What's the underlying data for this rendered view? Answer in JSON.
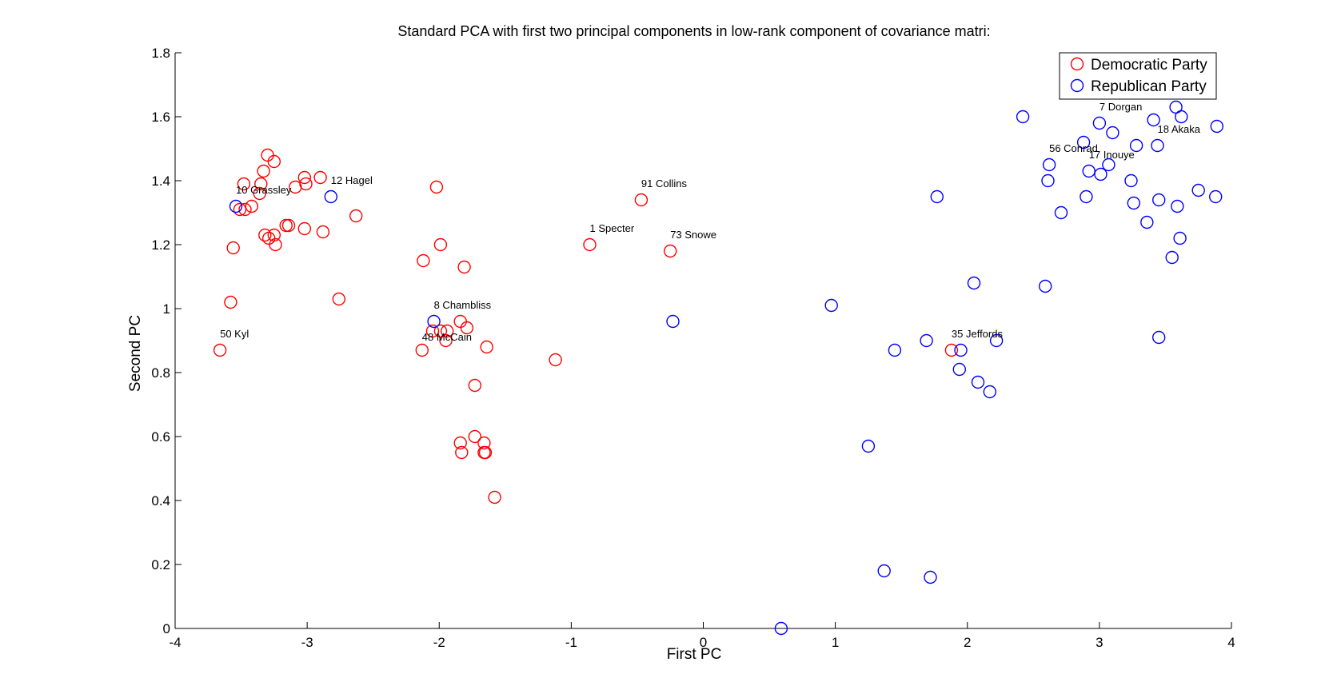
{
  "chart_data": {
    "type": "scatter",
    "title": "Standard PCA with first two principal components in low-rank component of covariance matri:",
    "xlabel": "First PC",
    "ylabel": "Second PC",
    "xlim": [
      -4,
      4
    ],
    "ylim": [
      0,
      1.8
    ],
    "x_ticks": [
      "-4",
      "-3",
      "-2",
      "-1",
      "0",
      "1",
      "2",
      "3",
      "4"
    ],
    "y_ticks": [
      "0",
      "0.2",
      "0.4",
      "0.6",
      "0.8",
      "1",
      "1.2",
      "1.4",
      "1.6",
      "1.8"
    ],
    "grid": false,
    "legend_position": "top-right",
    "series": [
      {
        "name": "Democratic Party",
        "color": "#ff0000",
        "marker": "open-circle",
        "points": [
          [
            -3.3,
            1.48
          ],
          [
            -3.25,
            1.46
          ],
          [
            -3.33,
            1.43
          ],
          [
            -3.48,
            1.39
          ],
          [
            -3.35,
            1.39
          ],
          [
            -3.36,
            1.36
          ],
          [
            -3.02,
            1.41
          ],
          [
            -3.01,
            1.39
          ],
          [
            -2.9,
            1.41
          ],
          [
            -3.09,
            1.38
          ],
          [
            -3.42,
            1.32
          ],
          [
            -3.47,
            1.31
          ],
          [
            -3.51,
            1.31
          ],
          [
            -3.16,
            1.26
          ],
          [
            -3.14,
            1.26
          ],
          [
            -3.02,
            1.25
          ],
          [
            -2.88,
            1.24
          ],
          [
            -3.32,
            1.23
          ],
          [
            -3.25,
            1.23
          ],
          [
            -3.29,
            1.22
          ],
          [
            -3.24,
            1.2
          ],
          [
            -3.56,
            1.19
          ],
          [
            -2.63,
            1.29
          ],
          [
            -2.76,
            1.03
          ],
          [
            -3.58,
            1.02
          ],
          [
            -3.66,
            0.87
          ],
          [
            -2.02,
            1.38
          ],
          [
            -1.99,
            1.2
          ],
          [
            -2.12,
            1.15
          ],
          [
            -1.81,
            1.13
          ],
          [
            -1.84,
            0.96
          ],
          [
            -1.79,
            0.94
          ],
          [
            -1.94,
            0.93
          ],
          [
            -1.99,
            0.93
          ],
          [
            -2.05,
            0.93
          ],
          [
            -1.95,
            0.9
          ],
          [
            -1.64,
            0.88
          ],
          [
            -2.13,
            0.87
          ],
          [
            -1.73,
            0.76
          ],
          [
            -1.73,
            0.6
          ],
          [
            -1.66,
            0.58
          ],
          [
            -1.84,
            0.58
          ],
          [
            -1.83,
            0.55
          ],
          [
            -1.66,
            0.55
          ],
          [
            -1.65,
            0.55
          ],
          [
            -1.58,
            0.41
          ],
          [
            -1.12,
            0.84
          ],
          [
            -0.86,
            1.2
          ],
          [
            -0.47,
            1.34
          ],
          [
            -0.25,
            1.18
          ],
          [
            1.88,
            0.87
          ]
        ]
      },
      {
        "name": "Republican Party",
        "color": "#0000ff",
        "marker": "open-circle",
        "points": [
          [
            -3.54,
            1.32
          ],
          [
            -2.82,
            1.35
          ],
          [
            -2.04,
            0.96
          ],
          [
            -0.23,
            0.96
          ],
          [
            0.97,
            1.01
          ],
          [
            0.59,
            0.0
          ],
          [
            1.25,
            0.57
          ],
          [
            1.37,
            0.18
          ],
          [
            1.45,
            0.87
          ],
          [
            1.69,
            0.9
          ],
          [
            1.72,
            0.16
          ],
          [
            1.77,
            1.35
          ],
          [
            1.94,
            0.81
          ],
          [
            1.95,
            0.87
          ],
          [
            2.05,
            1.08
          ],
          [
            2.08,
            0.77
          ],
          [
            2.17,
            0.74
          ],
          [
            2.22,
            0.9
          ],
          [
            2.42,
            1.6
          ],
          [
            2.59,
            1.07
          ],
          [
            2.61,
            1.4
          ],
          [
            2.62,
            1.45
          ],
          [
            2.71,
            1.3
          ],
          [
            2.88,
            1.52
          ],
          [
            2.9,
            1.35
          ],
          [
            2.92,
            1.43
          ],
          [
            3.0,
            1.58
          ],
          [
            3.01,
            1.42
          ],
          [
            3.07,
            1.45
          ],
          [
            3.1,
            1.55
          ],
          [
            3.24,
            1.4
          ],
          [
            3.26,
            1.33
          ],
          [
            3.28,
            1.51
          ],
          [
            3.36,
            1.27
          ],
          [
            3.41,
            1.59
          ],
          [
            3.44,
            1.51
          ],
          [
            3.45,
            1.34
          ],
          [
            3.45,
            0.91
          ],
          [
            3.55,
            1.16
          ],
          [
            3.58,
            1.63
          ],
          [
            3.59,
            1.32
          ],
          [
            3.61,
            1.22
          ],
          [
            3.62,
            1.6
          ],
          [
            3.75,
            1.37
          ],
          [
            3.88,
            1.35
          ],
          [
            3.89,
            1.57
          ]
        ]
      }
    ],
    "annotations": [
      {
        "text": "10 Grassley",
        "x": -3.54,
        "y": 1.36
      },
      {
        "text": "12 Hagel",
        "x": -2.82,
        "y": 1.39
      },
      {
        "text": "50 Kyl",
        "x": -3.66,
        "y": 0.91
      },
      {
        "text": "8 Chambliss",
        "x": -2.04,
        "y": 1.0
      },
      {
        "text": "48 McCain",
        "x": -2.13,
        "y": 0.9
      },
      {
        "text": "1 Specter",
        "x": -0.86,
        "y": 1.24
      },
      {
        "text": "91 Collins",
        "x": -0.47,
        "y": 1.38
      },
      {
        "text": "73 Snowe",
        "x": -0.25,
        "y": 1.22
      },
      {
        "text": "35 Jeffords",
        "x": 1.88,
        "y": 0.91
      },
      {
        "text": "56 Conrad",
        "x": 2.62,
        "y": 1.49
      },
      {
        "text": "17 Inouye",
        "x": 2.92,
        "y": 1.47
      },
      {
        "text": "7 Dorgan",
        "x": 3.0,
        "y": 1.62
      },
      {
        "text": "18 Akaka",
        "x": 3.44,
        "y": 1.55
      }
    ]
  }
}
